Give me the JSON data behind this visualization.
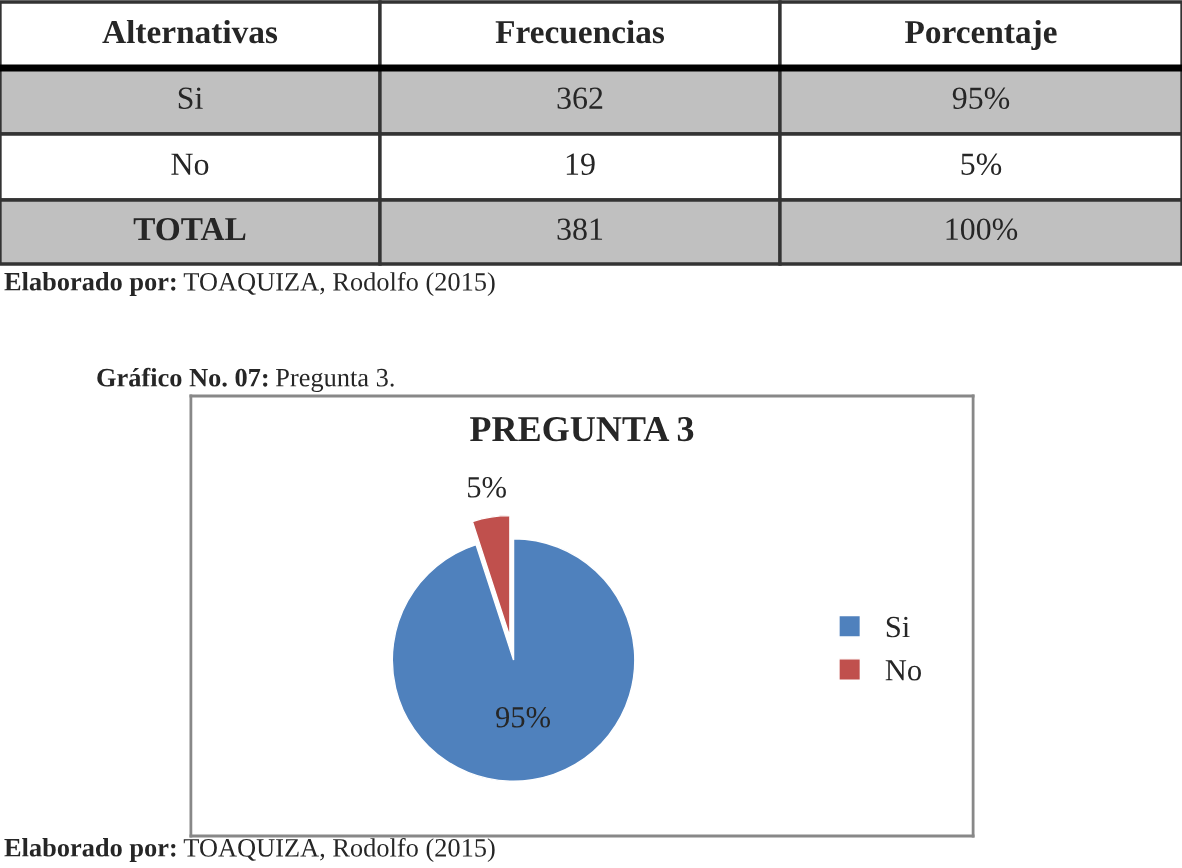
{
  "chart_data": {
    "type": "pie",
    "title": "PREGUNTA 3",
    "categories": [
      "Si",
      "No"
    ],
    "values": [
      95,
      5
    ],
    "colors": [
      "#4f81bd",
      "#c0504d"
    ],
    "value_labels": [
      "95%",
      "5%"
    ],
    "legend": "right",
    "annotations": [
      "Alternativas",
      "Frecuencias",
      "Porcentaje",
      "Si",
      "362",
      "95%",
      "No",
      "19",
      "5%",
      "TOTAL",
      "381",
      "100%",
      "Elaborado por:",
      "TOAQUIZA, Rodolfo (2015)",
      "Gráfico No. 07:",
      "Pregunta 3.",
      "Elaborado por:",
      "TOAQUIZA, Rodolfo (2015)"
    ]
  }
}
